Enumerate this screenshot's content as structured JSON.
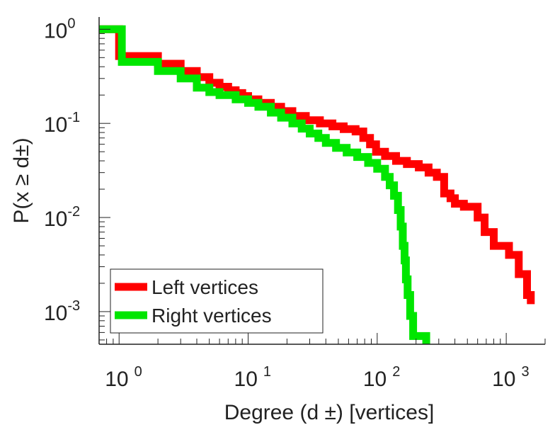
{
  "chart_data": {
    "type": "line",
    "title": "",
    "xlabel": "Degree (d  ±) [vertices]",
    "ylabel": "P(x ≥ d±)",
    "xscale": "log",
    "yscale": "log",
    "xlim": [
      0.7,
      2000
    ],
    "ylim": [
      0.00045,
      1.35
    ],
    "x_ticks": [
      {
        "base": "10",
        "exp": "0"
      },
      {
        "base": "10",
        "exp": "1"
      },
      {
        "base": "10",
        "exp": "2"
      },
      {
        "base": "10",
        "exp": "3"
      }
    ],
    "y_ticks": [
      {
        "base": "10",
        "exp": "0"
      },
      {
        "base": "10",
        "exp": "-1"
      },
      {
        "base": "10",
        "exp": "-2"
      },
      {
        "base": "10",
        "exp": "-3"
      }
    ],
    "legend_position": "bottom-left",
    "grid": false,
    "series": [
      {
        "name": "Left vertices",
        "color": "#ff0000",
        "points": [
          [
            0.7,
            1.0
          ],
          [
            1.0,
            1.0
          ],
          [
            1.0,
            0.52
          ],
          [
            2.0,
            0.52
          ],
          [
            2.0,
            0.43
          ],
          [
            3.0,
            0.43
          ],
          [
            3.0,
            0.36
          ],
          [
            4.0,
            0.36
          ],
          [
            4.0,
            0.31
          ],
          [
            5.0,
            0.31
          ],
          [
            5.0,
            0.27
          ],
          [
            6.0,
            0.27
          ],
          [
            6.0,
            0.245
          ],
          [
            7.0,
            0.245
          ],
          [
            7.0,
            0.225
          ],
          [
            8.0,
            0.225
          ],
          [
            8.0,
            0.21
          ],
          [
            9.0,
            0.21
          ],
          [
            9.0,
            0.195
          ],
          [
            10.0,
            0.195
          ],
          [
            10.0,
            0.18
          ],
          [
            12.0,
            0.18
          ],
          [
            12.0,
            0.165
          ],
          [
            15.0,
            0.165
          ],
          [
            15.0,
            0.15
          ],
          [
            18.0,
            0.15
          ],
          [
            18.0,
            0.135
          ],
          [
            22.0,
            0.135
          ],
          [
            22.0,
            0.12
          ],
          [
            28.0,
            0.12
          ],
          [
            28.0,
            0.108
          ],
          [
            36.0,
            0.108
          ],
          [
            36.0,
            0.1
          ],
          [
            45.0,
            0.1
          ],
          [
            45.0,
            0.093
          ],
          [
            55.0,
            0.093
          ],
          [
            55.0,
            0.087
          ],
          [
            68.0,
            0.087
          ],
          [
            68.0,
            0.082
          ],
          [
            78.0,
            0.082
          ],
          [
            78.0,
            0.07
          ],
          [
            88.0,
            0.07
          ],
          [
            88.0,
            0.06
          ],
          [
            98.0,
            0.06
          ],
          [
            98.0,
            0.05
          ],
          [
            115.0,
            0.05
          ],
          [
            115.0,
            0.045
          ],
          [
            140.0,
            0.045
          ],
          [
            140.0,
            0.04
          ],
          [
            170.0,
            0.04
          ],
          [
            170.0,
            0.037
          ],
          [
            210.0,
            0.037
          ],
          [
            210.0,
            0.034
          ],
          [
            250.0,
            0.034
          ],
          [
            250.0,
            0.03
          ],
          [
            290.0,
            0.03
          ],
          [
            290.0,
            0.027
          ],
          [
            330.0,
            0.027
          ],
          [
            330.0,
            0.018
          ],
          [
            370.0,
            0.018
          ],
          [
            370.0,
            0.016
          ],
          [
            400.0,
            0.016
          ],
          [
            400.0,
            0.014
          ],
          [
            470.0,
            0.014
          ],
          [
            470.0,
            0.013
          ],
          [
            600.0,
            0.013
          ],
          [
            600.0,
            0.01
          ],
          [
            680.0,
            0.01
          ],
          [
            680.0,
            0.007
          ],
          [
            800.0,
            0.007
          ],
          [
            800.0,
            0.005
          ],
          [
            1050.0,
            0.005
          ],
          [
            1050.0,
            0.004
          ],
          [
            1250.0,
            0.004
          ],
          [
            1250.0,
            0.0025
          ],
          [
            1450.0,
            0.0025
          ],
          [
            1450.0,
            0.0015
          ],
          [
            1550.0,
            0.0015
          ],
          [
            1550.0,
            0.0012
          ]
        ]
      },
      {
        "name": "Right vertices",
        "color": "#00e600",
        "points": [
          [
            0.7,
            1.0
          ],
          [
            1.05,
            1.0
          ],
          [
            1.05,
            0.45
          ],
          [
            2.0,
            0.45
          ],
          [
            2.0,
            0.36
          ],
          [
            3.0,
            0.36
          ],
          [
            3.0,
            0.3
          ],
          [
            4.0,
            0.3
          ],
          [
            4.0,
            0.24
          ],
          [
            5.0,
            0.24
          ],
          [
            5.0,
            0.215
          ],
          [
            6.0,
            0.215
          ],
          [
            6.0,
            0.2
          ],
          [
            8.0,
            0.2
          ],
          [
            8.0,
            0.18
          ],
          [
            10.0,
            0.18
          ],
          [
            10.0,
            0.165
          ],
          [
            12.0,
            0.165
          ],
          [
            12.0,
            0.15
          ],
          [
            15.0,
            0.15
          ],
          [
            15.0,
            0.13
          ],
          [
            18.0,
            0.13
          ],
          [
            18.0,
            0.115
          ],
          [
            22.0,
            0.115
          ],
          [
            22.0,
            0.1
          ],
          [
            26.0,
            0.1
          ],
          [
            26.0,
            0.088
          ],
          [
            30.0,
            0.088
          ],
          [
            30.0,
            0.078
          ],
          [
            35.0,
            0.078
          ],
          [
            35.0,
            0.07
          ],
          [
            40.0,
            0.07
          ],
          [
            40.0,
            0.062
          ],
          [
            48.0,
            0.062
          ],
          [
            48.0,
            0.055
          ],
          [
            58.0,
            0.055
          ],
          [
            58.0,
            0.049
          ],
          [
            70.0,
            0.049
          ],
          [
            70.0,
            0.044
          ],
          [
            85.0,
            0.044
          ],
          [
            85.0,
            0.038
          ],
          [
            100.0,
            0.038
          ],
          [
            100.0,
            0.033
          ],
          [
            115.0,
            0.033
          ],
          [
            115.0,
            0.027
          ],
          [
            125.0,
            0.027
          ],
          [
            125.0,
            0.022
          ],
          [
            135.0,
            0.022
          ],
          [
            135.0,
            0.017
          ],
          [
            145.0,
            0.017
          ],
          [
            145.0,
            0.012
          ],
          [
            152.0,
            0.012
          ],
          [
            152.0,
            0.008
          ],
          [
            158.0,
            0.008
          ],
          [
            158.0,
            0.005
          ],
          [
            163.0,
            0.005
          ],
          [
            163.0,
            0.0035
          ],
          [
            167.0,
            0.0035
          ],
          [
            167.0,
            0.0022
          ],
          [
            172.0,
            0.0022
          ],
          [
            172.0,
            0.0015
          ],
          [
            180.0,
            0.0015
          ],
          [
            180.0,
            0.0009
          ],
          [
            190.0,
            0.0009
          ],
          [
            190.0,
            0.00055
          ],
          [
            240.0,
            0.00055
          ],
          [
            240.0,
            0.00045
          ]
        ]
      }
    ]
  }
}
